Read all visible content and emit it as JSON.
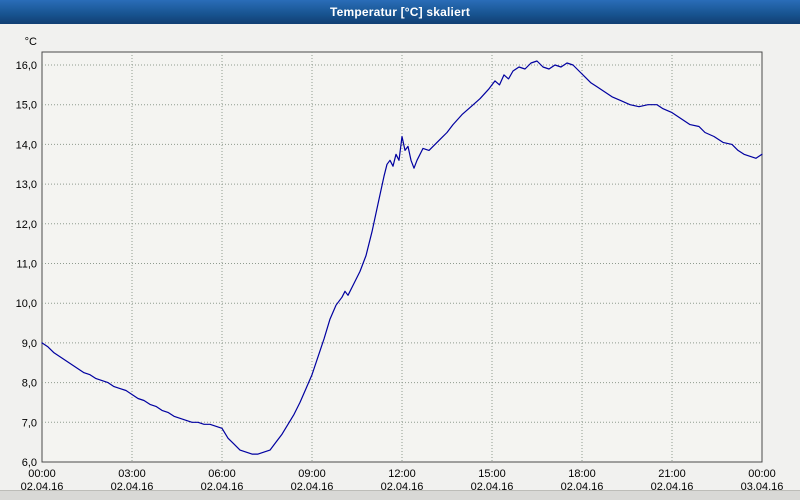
{
  "window": {
    "title": "Temperatur [°C] skaliert"
  },
  "chart_data": {
    "type": "line",
    "title": "Temperatur [°C] skaliert",
    "y_unit_label": "°C",
    "xlabel": "",
    "ylabel": "°C",
    "ylim": [
      6.0,
      16.0
    ],
    "ytick_step": 1.0,
    "ytick_labels": [
      "6,0",
      "7,0",
      "8,0",
      "9,0",
      "10,0",
      "11,0",
      "12,0",
      "13,0",
      "14,0",
      "15,0",
      "16,0"
    ],
    "x_range_hours": [
      0,
      24
    ],
    "xtick_step_hours": 3,
    "x_ticks": [
      {
        "time": "00:00",
        "date": "02.04.16"
      },
      {
        "time": "03:00",
        "date": "02.04.16"
      },
      {
        "time": "06:00",
        "date": "02.04.16"
      },
      {
        "time": "09:00",
        "date": "02.04.16"
      },
      {
        "time": "12:00",
        "date": "02.04.16"
      },
      {
        "time": "15:00",
        "date": "02.04.16"
      },
      {
        "time": "18:00",
        "date": "02.04.16"
      },
      {
        "time": "21:00",
        "date": "02.04.16"
      },
      {
        "time": "00:00",
        "date": "03.04.16"
      }
    ],
    "grid": true,
    "grid_style": "dotted",
    "grid_color": "#8f9b8f",
    "line_color": "#0000a0",
    "legend": "none",
    "series": [
      {
        "name": "Temperatur",
        "points": [
          [
            0,
            9.0
          ],
          [
            0.2,
            8.9
          ],
          [
            0.4,
            8.75
          ],
          [
            0.6,
            8.65
          ],
          [
            0.8,
            8.55
          ],
          [
            1,
            8.45
          ],
          [
            1.2,
            8.35
          ],
          [
            1.4,
            8.25
          ],
          [
            1.6,
            8.2
          ],
          [
            1.8,
            8.1
          ],
          [
            2,
            8.05
          ],
          [
            2.2,
            8.0
          ],
          [
            2.4,
            7.9
          ],
          [
            2.6,
            7.85
          ],
          [
            2.8,
            7.8
          ],
          [
            3,
            7.7
          ],
          [
            3.2,
            7.6
          ],
          [
            3.4,
            7.55
          ],
          [
            3.6,
            7.45
          ],
          [
            3.8,
            7.4
          ],
          [
            4,
            7.3
          ],
          [
            4.2,
            7.25
          ],
          [
            4.4,
            7.15
          ],
          [
            4.6,
            7.1
          ],
          [
            4.8,
            7.05
          ],
          [
            5,
            7.0
          ],
          [
            5.2,
            7.0
          ],
          [
            5.4,
            6.95
          ],
          [
            5.6,
            6.95
          ],
          [
            5.8,
            6.9
          ],
          [
            6,
            6.85
          ],
          [
            6.2,
            6.6
          ],
          [
            6.4,
            6.45
          ],
          [
            6.6,
            6.3
          ],
          [
            6.8,
            6.25
          ],
          [
            7,
            6.2
          ],
          [
            7.2,
            6.2
          ],
          [
            7.4,
            6.25
          ],
          [
            7.6,
            6.3
          ],
          [
            7.8,
            6.5
          ],
          [
            8,
            6.7
          ],
          [
            8.2,
            6.95
          ],
          [
            8.4,
            7.2
          ],
          [
            8.6,
            7.5
          ],
          [
            8.8,
            7.85
          ],
          [
            9,
            8.2
          ],
          [
            9.2,
            8.65
          ],
          [
            9.4,
            9.1
          ],
          [
            9.6,
            9.6
          ],
          [
            9.8,
            9.95
          ],
          [
            10,
            10.15
          ],
          [
            10.1,
            10.3
          ],
          [
            10.2,
            10.2
          ],
          [
            10.4,
            10.5
          ],
          [
            10.6,
            10.8
          ],
          [
            10.8,
            11.2
          ],
          [
            11,
            11.8
          ],
          [
            11.2,
            12.5
          ],
          [
            11.4,
            13.2
          ],
          [
            11.5,
            13.5
          ],
          [
            11.6,
            13.6
          ],
          [
            11.7,
            13.45
          ],
          [
            11.8,
            13.75
          ],
          [
            11.9,
            13.6
          ],
          [
            12,
            14.2
          ],
          [
            12.1,
            13.85
          ],
          [
            12.2,
            13.95
          ],
          [
            12.3,
            13.6
          ],
          [
            12.4,
            13.4
          ],
          [
            12.5,
            13.6
          ],
          [
            12.7,
            13.9
          ],
          [
            12.9,
            13.85
          ],
          [
            13.1,
            14.0
          ],
          [
            13.3,
            14.15
          ],
          [
            13.5,
            14.3
          ],
          [
            13.7,
            14.5
          ],
          [
            14,
            14.75
          ],
          [
            14.3,
            14.95
          ],
          [
            14.6,
            15.15
          ],
          [
            14.9,
            15.4
          ],
          [
            15.1,
            15.6
          ],
          [
            15.25,
            15.5
          ],
          [
            15.4,
            15.75
          ],
          [
            15.55,
            15.65
          ],
          [
            15.7,
            15.85
          ],
          [
            15.9,
            15.95
          ],
          [
            16.1,
            15.9
          ],
          [
            16.3,
            16.05
          ],
          [
            16.5,
            16.1
          ],
          [
            16.7,
            15.95
          ],
          [
            16.9,
            15.9
          ],
          [
            17.1,
            16.0
          ],
          [
            17.3,
            15.95
          ],
          [
            17.5,
            16.05
          ],
          [
            17.7,
            16.0
          ],
          [
            17.9,
            15.85
          ],
          [
            18.1,
            15.7
          ],
          [
            18.3,
            15.55
          ],
          [
            18.5,
            15.45
          ],
          [
            18.7,
            15.35
          ],
          [
            19,
            15.2
          ],
          [
            19.3,
            15.1
          ],
          [
            19.6,
            15.0
          ],
          [
            19.9,
            14.95
          ],
          [
            20.2,
            15.0
          ],
          [
            20.5,
            15.0
          ],
          [
            20.7,
            14.9
          ],
          [
            21,
            14.8
          ],
          [
            21.3,
            14.65
          ],
          [
            21.6,
            14.5
          ],
          [
            21.9,
            14.45
          ],
          [
            22.1,
            14.3
          ],
          [
            22.4,
            14.2
          ],
          [
            22.7,
            14.05
          ],
          [
            23,
            14.0
          ],
          [
            23.2,
            13.85
          ],
          [
            23.4,
            13.75
          ],
          [
            23.6,
            13.7
          ],
          [
            23.8,
            13.65
          ],
          [
            24,
            13.75
          ]
        ]
      }
    ]
  }
}
